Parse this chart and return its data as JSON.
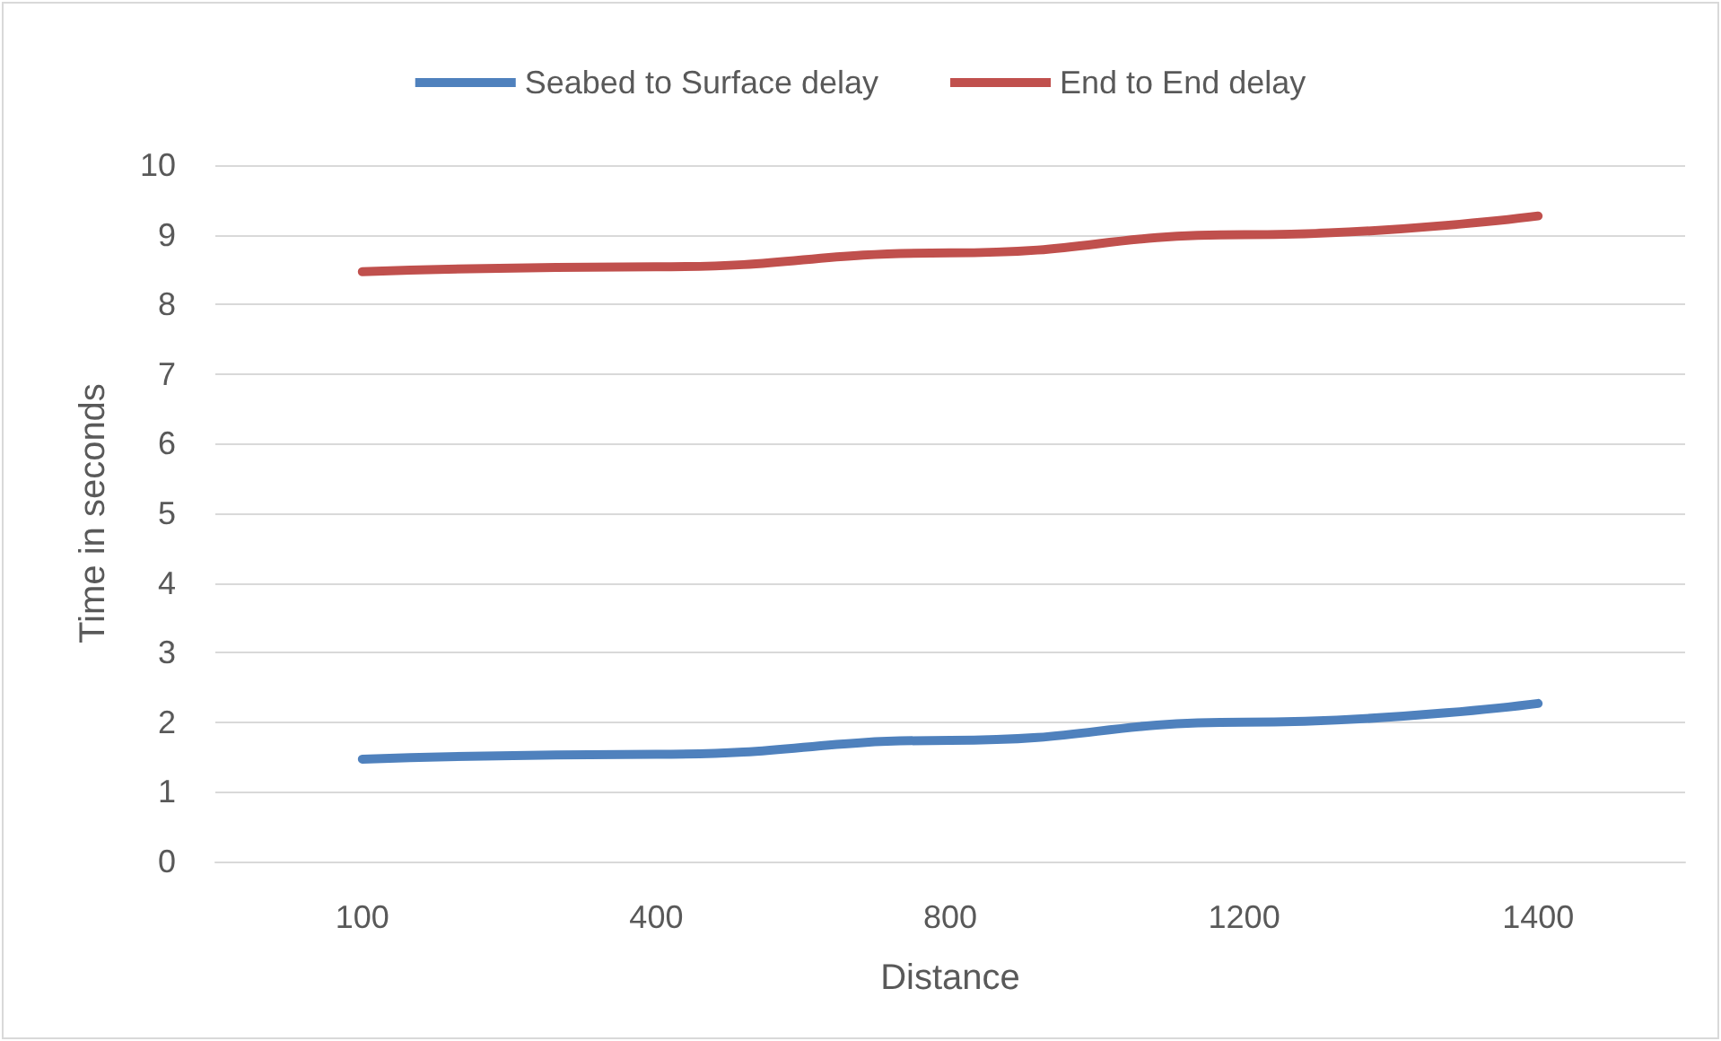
{
  "chart_data": {
    "type": "line",
    "xlabel": "Distance",
    "ylabel": "Time in seconds",
    "categories": [
      "100",
      "400",
      "800",
      "1200",
      "1400"
    ],
    "series": [
      {
        "name": "Seabed to Surface delay",
        "color": "#4f81bd",
        "values": [
          1.47,
          1.54,
          1.74,
          2.0,
          2.27
        ]
      },
      {
        "name": "End to End delay",
        "color": "#c0504d",
        "values": [
          8.47,
          8.54,
          8.74,
          9.0,
          9.27
        ]
      }
    ],
    "ylim": [
      0,
      10
    ],
    "yticks": [
      0,
      1,
      2,
      3,
      4,
      5,
      6,
      7,
      8,
      9,
      10
    ],
    "grid": "y",
    "legend": "top",
    "marker": "none",
    "line_style": "solid"
  }
}
